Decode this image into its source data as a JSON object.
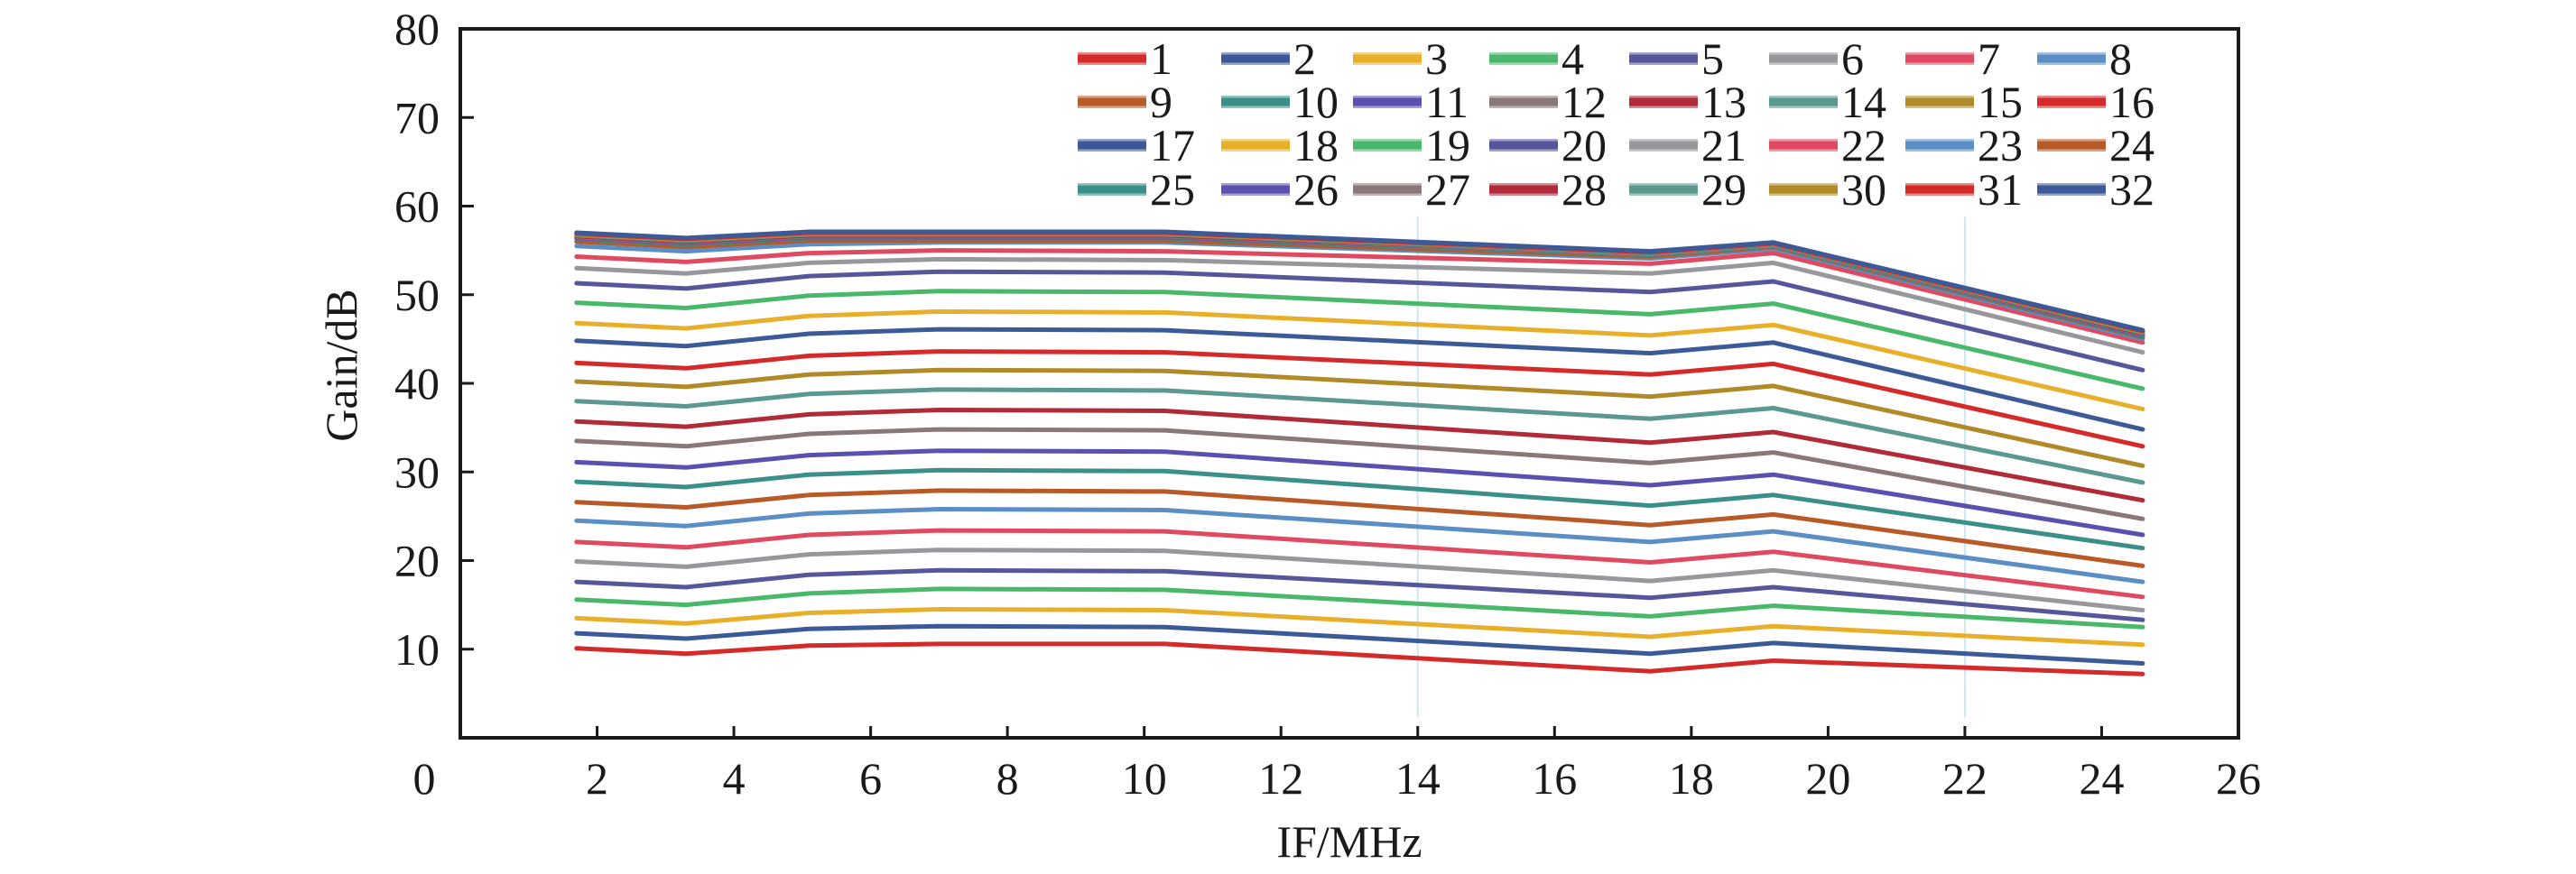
{
  "chart_data": {
    "type": "line",
    "title": "",
    "xlabel": "IF/MHz",
    "ylabel": "Gain/dB",
    "xlim": [
      0,
      26
    ],
    "ylim": [
      0,
      80
    ],
    "x_ticks": [
      "0",
      "2",
      "4",
      "6",
      "8",
      "10",
      "12",
      "14",
      "16",
      "18",
      "20",
      "22",
      "24",
      "26"
    ],
    "y_ticks": [
      "10",
      "20",
      "30",
      "40",
      "50",
      "60",
      "70",
      "80"
    ],
    "grid": false,
    "legend_placement": "top-right",
    "x": [
      1.7,
      3.3,
      5.1,
      7.0,
      10.3,
      17.4,
      19.2,
      24.6
    ],
    "series": [
      {
        "name": "1",
        "color": "#d42a2a",
        "values": [
          10.1,
          9.5,
          10.4,
          10.6,
          10.6,
          7.5,
          8.7,
          7.2
        ]
      },
      {
        "name": "2",
        "color": "#3c5a98",
        "values": [
          11.8,
          11.2,
          12.3,
          12.6,
          12.5,
          9.5,
          10.7,
          8.4
        ]
      },
      {
        "name": "3",
        "color": "#e8b02a",
        "values": [
          13.5,
          12.9,
          14.1,
          14.5,
          14.4,
          11.4,
          12.6,
          10.5
        ]
      },
      {
        "name": "4",
        "color": "#4ab86a",
        "values": [
          15.6,
          15.0,
          16.3,
          16.8,
          16.7,
          13.7,
          14.9,
          12.5
        ]
      },
      {
        "name": "5",
        "color": "#56569a",
        "values": [
          17.6,
          17.0,
          18.4,
          18.9,
          18.8,
          15.8,
          17.0,
          13.3
        ]
      },
      {
        "name": "6",
        "color": "#98989c",
        "values": [
          19.9,
          19.3,
          20.7,
          21.2,
          21.1,
          17.7,
          18.9,
          14.4
        ]
      },
      {
        "name": "7",
        "color": "#e04a60",
        "values": [
          22.1,
          21.5,
          22.9,
          23.4,
          23.3,
          19.8,
          21.0,
          15.9
        ]
      },
      {
        "name": "8",
        "color": "#5a8ec4",
        "values": [
          24.5,
          23.9,
          25.3,
          25.8,
          25.7,
          22.1,
          23.3,
          17.6
        ]
      },
      {
        "name": "9",
        "color": "#b85a28",
        "values": [
          26.6,
          26.0,
          27.4,
          27.9,
          27.8,
          24.0,
          25.2,
          19.4
        ]
      },
      {
        "name": "10",
        "color": "#3a9088",
        "values": [
          28.9,
          28.3,
          29.7,
          30.2,
          30.1,
          26.2,
          27.4,
          21.4
        ]
      },
      {
        "name": "11",
        "color": "#5a50b0",
        "values": [
          31.1,
          30.5,
          31.9,
          32.4,
          32.3,
          28.5,
          29.7,
          22.9
        ]
      },
      {
        "name": "12",
        "color": "#8a7878",
        "values": [
          33.5,
          32.9,
          34.3,
          34.8,
          34.7,
          31.0,
          32.2,
          24.7
        ]
      },
      {
        "name": "13",
        "color": "#b02a38",
        "values": [
          35.7,
          35.1,
          36.5,
          37.0,
          36.9,
          33.3,
          34.5,
          26.8
        ]
      },
      {
        "name": "14",
        "color": "#5a9890",
        "values": [
          38.0,
          37.4,
          38.8,
          39.3,
          39.2,
          36.0,
          37.2,
          28.8
        ]
      },
      {
        "name": "15",
        "color": "#b08a28",
        "values": [
          40.2,
          39.6,
          41.0,
          41.5,
          41.4,
          38.5,
          39.7,
          30.7
        ]
      },
      {
        "name": "16",
        "color": "#d42a2a",
        "values": [
          42.3,
          41.7,
          43.1,
          43.6,
          43.5,
          41.0,
          42.2,
          32.9
        ]
      },
      {
        "name": "17",
        "color": "#3c5a98",
        "values": [
          44.8,
          44.2,
          45.6,
          46.1,
          46.0,
          43.4,
          44.6,
          34.8
        ]
      },
      {
        "name": "18",
        "color": "#e8b02a",
        "values": [
          46.8,
          46.2,
          47.6,
          48.1,
          48.0,
          45.4,
          46.6,
          37.1
        ]
      },
      {
        "name": "19",
        "color": "#4ab86a",
        "values": [
          49.1,
          48.5,
          49.9,
          50.4,
          50.3,
          47.8,
          49.0,
          39.4
        ]
      },
      {
        "name": "20",
        "color": "#56569a",
        "values": [
          51.3,
          50.7,
          52.1,
          52.6,
          52.5,
          50.3,
          51.5,
          41.5
        ]
      },
      {
        "name": "21",
        "color": "#98989c",
        "values": [
          53.0,
          52.4,
          53.6,
          54.0,
          53.9,
          52.4,
          53.6,
          43.5
        ]
      },
      {
        "name": "22",
        "color": "#e04a60",
        "values": [
          54.3,
          53.7,
          54.7,
          55.0,
          54.9,
          53.5,
          54.7,
          44.6
        ]
      },
      {
        "name": "23",
        "color": "#5a8ec4",
        "values": [
          55.5,
          54.9,
          55.7,
          55.9,
          55.9,
          54.1,
          55.2,
          45.0
        ]
      },
      {
        "name": "24",
        "color": "#b85a28",
        "values": [
          56.0,
          55.4,
          56.1,
          56.1,
          56.1,
          54.3,
          55.4,
          45.2
        ]
      },
      {
        "name": "25",
        "color": "#3a9088",
        "values": [
          56.3,
          55.7,
          56.4,
          56.4,
          56.4,
          54.5,
          55.5,
          45.3
        ]
      },
      {
        "name": "26",
        "color": "#5a50b0",
        "values": [
          56.4,
          55.8,
          56.5,
          56.5,
          56.5,
          54.6,
          55.6,
          45.4
        ]
      },
      {
        "name": "27",
        "color": "#8a7878",
        "values": [
          56.5,
          55.9,
          56.6,
          56.6,
          56.6,
          54.6,
          55.6,
          45.5
        ]
      },
      {
        "name": "28",
        "color": "#b02a38",
        "values": [
          56.6,
          56.0,
          56.7,
          56.7,
          56.7,
          54.7,
          55.7,
          45.6
        ]
      },
      {
        "name": "29",
        "color": "#5a9890",
        "values": [
          56.7,
          56.1,
          56.8,
          56.8,
          56.8,
          54.7,
          55.7,
          45.7
        ]
      },
      {
        "name": "30",
        "color": "#b08a28",
        "values": [
          56.8,
          56.2,
          56.9,
          56.9,
          56.9,
          54.8,
          55.8,
          45.8
        ]
      },
      {
        "name": "31",
        "color": "#d42a2a",
        "values": [
          56.9,
          56.3,
          57.0,
          57.0,
          57.0,
          54.8,
          55.8,
          45.9
        ]
      },
      {
        "name": "32",
        "color": "#3c5a98",
        "values": [
          57.0,
          56.4,
          57.1,
          57.1,
          57.1,
          54.9,
          55.9,
          46.0
        ]
      }
    ]
  }
}
